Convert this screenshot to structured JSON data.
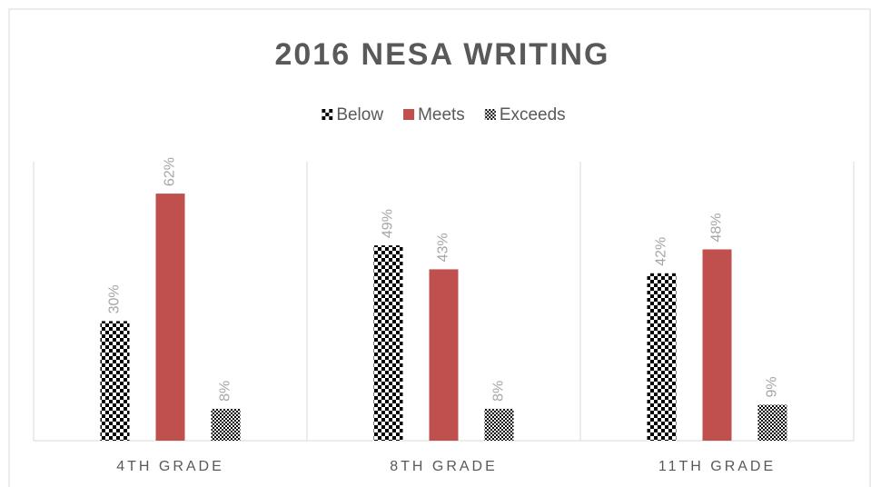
{
  "chart_data": {
    "type": "bar",
    "title": "2016 NESA WRITING",
    "categories": [
      "4TH GRADE",
      "8TH GRADE",
      "11TH GRADE"
    ],
    "series": [
      {
        "name": "Below",
        "color": "#000000",
        "pattern": "checker",
        "values": [
          30,
          49,
          42
        ],
        "value_labels": [
          "30%",
          "49%",
          "42%"
        ]
      },
      {
        "name": "Meets",
        "color": "#c0504d",
        "values": [
          62,
          43,
          48
        ],
        "value_labels": [
          "62%",
          "43%",
          "48%"
        ]
      },
      {
        "name": "Exceeds",
        "color": "#000000",
        "pattern": "fine",
        "values": [
          8,
          8,
          9
        ],
        "value_labels": [
          "8%",
          "8%",
          "9%"
        ]
      }
    ],
    "ylim": [
      0,
      70
    ],
    "legend": "top"
  }
}
